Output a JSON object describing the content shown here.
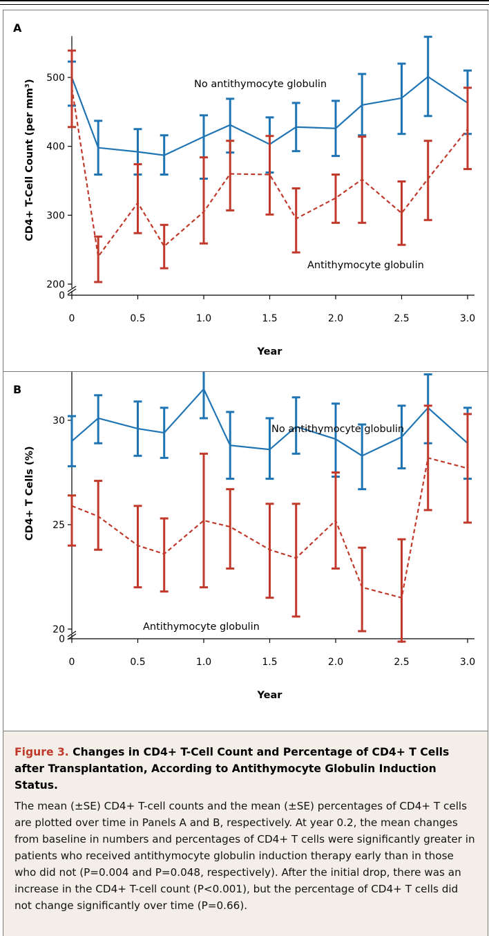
{
  "colors": {
    "no_atg": "#1f74b4",
    "atg": "#c0392b",
    "axis": "#000000",
    "caption_bg": "#f4eee9",
    "caption_title_accent": "#c0392b"
  },
  "chart_data": [
    {
      "type": "line",
      "panel_label": "A",
      "xlabel": "Year",
      "ylabel": "CD4+ T-Cell Count (per mm³)",
      "x_ticks": [
        "0",
        "0.5",
        "1.0",
        "1.5",
        "2.0",
        "2.5",
        "3.0"
      ],
      "y_ticks": [
        "0",
        "200",
        "300",
        "400",
        "500"
      ],
      "axis_break": true,
      "xlim": [
        0,
        3.0
      ],
      "ylim": [
        200,
        560
      ],
      "series": [
        {
          "name": "No antihymocyte globulin",
          "style": "solid",
          "x": [
            0,
            0.2,
            0.5,
            0.7,
            1.0,
            1.2,
            1.5,
            1.7,
            2.0,
            2.2,
            2.5,
            2.7,
            3.0
          ],
          "y": [
            500,
            398,
            392,
            387,
            414,
            431,
            403,
            428,
            426,
            460,
            470,
            501,
            463
          ],
          "err_low": [
            459,
            359,
            359,
            359,
            353,
            391,
            362,
            393,
            386,
            416,
            418,
            444,
            418
          ],
          "err_high": [
            523,
            437,
            425,
            416,
            445,
            469,
            442,
            463,
            466,
            505,
            520,
            559,
            510
          ]
        },
        {
          "name": "Antithymocyte globulin",
          "style": "dashed",
          "x": [
            0,
            0.2,
            0.5,
            0.7,
            1.0,
            1.2,
            1.5,
            1.7,
            2.0,
            2.2,
            2.5,
            2.7,
            3.0
          ],
          "y": [
            485,
            240,
            318,
            255,
            305,
            360,
            359,
            295,
            325,
            352,
            303,
            353,
            425
          ],
          "err_low": [
            428,
            203,
            274,
            223,
            259,
            307,
            301,
            246,
            289,
            289,
            257,
            293,
            367
          ],
          "err_high": [
            539,
            269,
            374,
            286,
            384,
            408,
            415,
            339,
            359,
            414,
            349,
            408,
            485
          ]
        }
      ],
      "annotations": [
        "No antithymocyte globulin",
        "Antithymocyte globulin"
      ]
    },
    {
      "type": "line",
      "panel_label": "B",
      "xlabel": "Year",
      "ylabel": "CD4+ T Cells (%)",
      "x_ticks": [
        "0",
        "0.5",
        "1.0",
        "1.5",
        "2.0",
        "2.5",
        "3.0"
      ],
      "y_ticks": [
        "0",
        "20",
        "25",
        "30"
      ],
      "axis_break": true,
      "xlim": [
        0,
        3.0
      ],
      "ylim": [
        20,
        33
      ],
      "series": [
        {
          "name": "No antithymocyte globulin",
          "style": "solid",
          "x": [
            0,
            0.2,
            0.5,
            0.7,
            1.0,
            1.2,
            1.5,
            1.7,
            2.0,
            2.2,
            2.5,
            2.7,
            3.0
          ],
          "y": [
            29.0,
            30.1,
            29.6,
            29.4,
            31.5,
            28.8,
            28.6,
            29.7,
            29.1,
            28.3,
            29.2,
            30.6,
            28.9
          ],
          "err_low": [
            27.8,
            28.9,
            28.3,
            28.2,
            30.1,
            27.2,
            27.2,
            28.4,
            27.3,
            26.7,
            27.7,
            28.9,
            27.2
          ],
          "err_high": [
            30.2,
            31.2,
            30.9,
            30.6,
            32.8,
            30.4,
            30.1,
            31.1,
            30.8,
            29.8,
            30.7,
            32.2,
            30.6
          ]
        },
        {
          "name": "Antithymocyte globulin",
          "style": "dashed",
          "x": [
            0,
            0.2,
            0.5,
            0.7,
            1.0,
            1.2,
            1.5,
            1.7,
            2.0,
            2.2,
            2.5,
            2.7,
            3.0
          ],
          "y": [
            25.9,
            25.4,
            24.0,
            23.6,
            25.2,
            24.9,
            23.8,
            23.4,
            25.2,
            22.0,
            21.5,
            28.2,
            27.7
          ],
          "err_low": [
            24.0,
            23.8,
            22.0,
            21.8,
            22.0,
            22.9,
            21.5,
            20.6,
            22.9,
            19.9,
            19.4,
            25.7,
            25.1
          ],
          "err_high": [
            26.4,
            27.1,
            25.9,
            25.3,
            28.4,
            26.7,
            26.0,
            26.0,
            27.5,
            23.9,
            24.3,
            30.7,
            30.3
          ]
        }
      ],
      "annotations": [
        "No antithymocyte globulin",
        "Antithymocyte globulin"
      ]
    }
  ],
  "caption": {
    "figure_label": "Figure 3.",
    "title": "Changes in CD4+ T-Cell Count and Percentage of CD4+ T Cells after Transplantation, According to Antithymocyte Globulin Induction Status.",
    "body": "The mean (±SE) CD4+ T-cell counts and the mean (±SE) percentages of CD4+ T cells are plotted over time in Panels A and B, respectively. At year 0.2, the mean changes from baseline in numbers and percentages of CD4+ T cells were significantly greater in patients who received antithymocyte globulin induction therapy early than in those who did not (P=0.004 and P=0.048, respectively). After the initial drop, there was an increase in the CD4+ T-cell count (P<0.001), but the percentage of CD4+ T cells did not change significantly over time (P=0.66)."
  }
}
